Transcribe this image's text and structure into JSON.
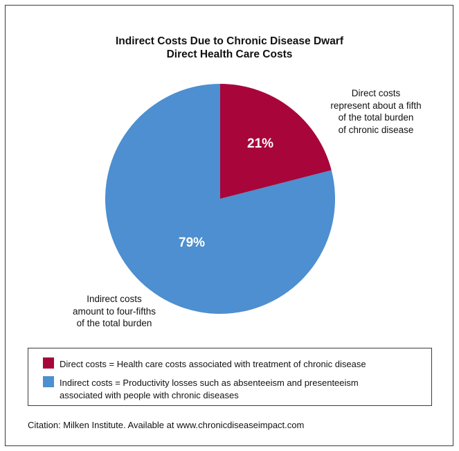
{
  "title_lines": [
    "Indirect Costs Due to Chronic Disease Dwarf",
    "Direct Health Care Costs"
  ],
  "chart_data": {
    "type": "pie",
    "title": "Indirect Costs Due to Chronic Disease Dwarf Direct Health Care Costs",
    "slices": [
      {
        "label": "Direct costs",
        "value": 21,
        "display": "21%",
        "color": "#a8063a"
      },
      {
        "label": "Indirect costs",
        "value": 79,
        "display": "79%",
        "color": "#4d8fd0"
      }
    ],
    "start_angle_deg": 0,
    "direction": "clockwise",
    "annotations": {
      "direct": [
        "Direct costs",
        "represent about a fifth",
        "of the total burden",
        "of chronic disease"
      ],
      "indirect": [
        "Indirect costs",
        "amount to four-fifths",
        "of the total burden"
      ]
    }
  },
  "legend": {
    "items": [
      {
        "lines": [
          "Direct costs = Health care costs associated with treatment of chronic disease"
        ],
        "color": "#a8063a"
      },
      {
        "lines": [
          "Indirect costs = Productivity losses such as absenteeism and presenteeism",
          "associated with people with chronic diseases"
        ],
        "color": "#4d8fd0"
      }
    ]
  },
  "citation": "Citation: Milken Institute. Available at www.chronicdiseaseimpact.com"
}
